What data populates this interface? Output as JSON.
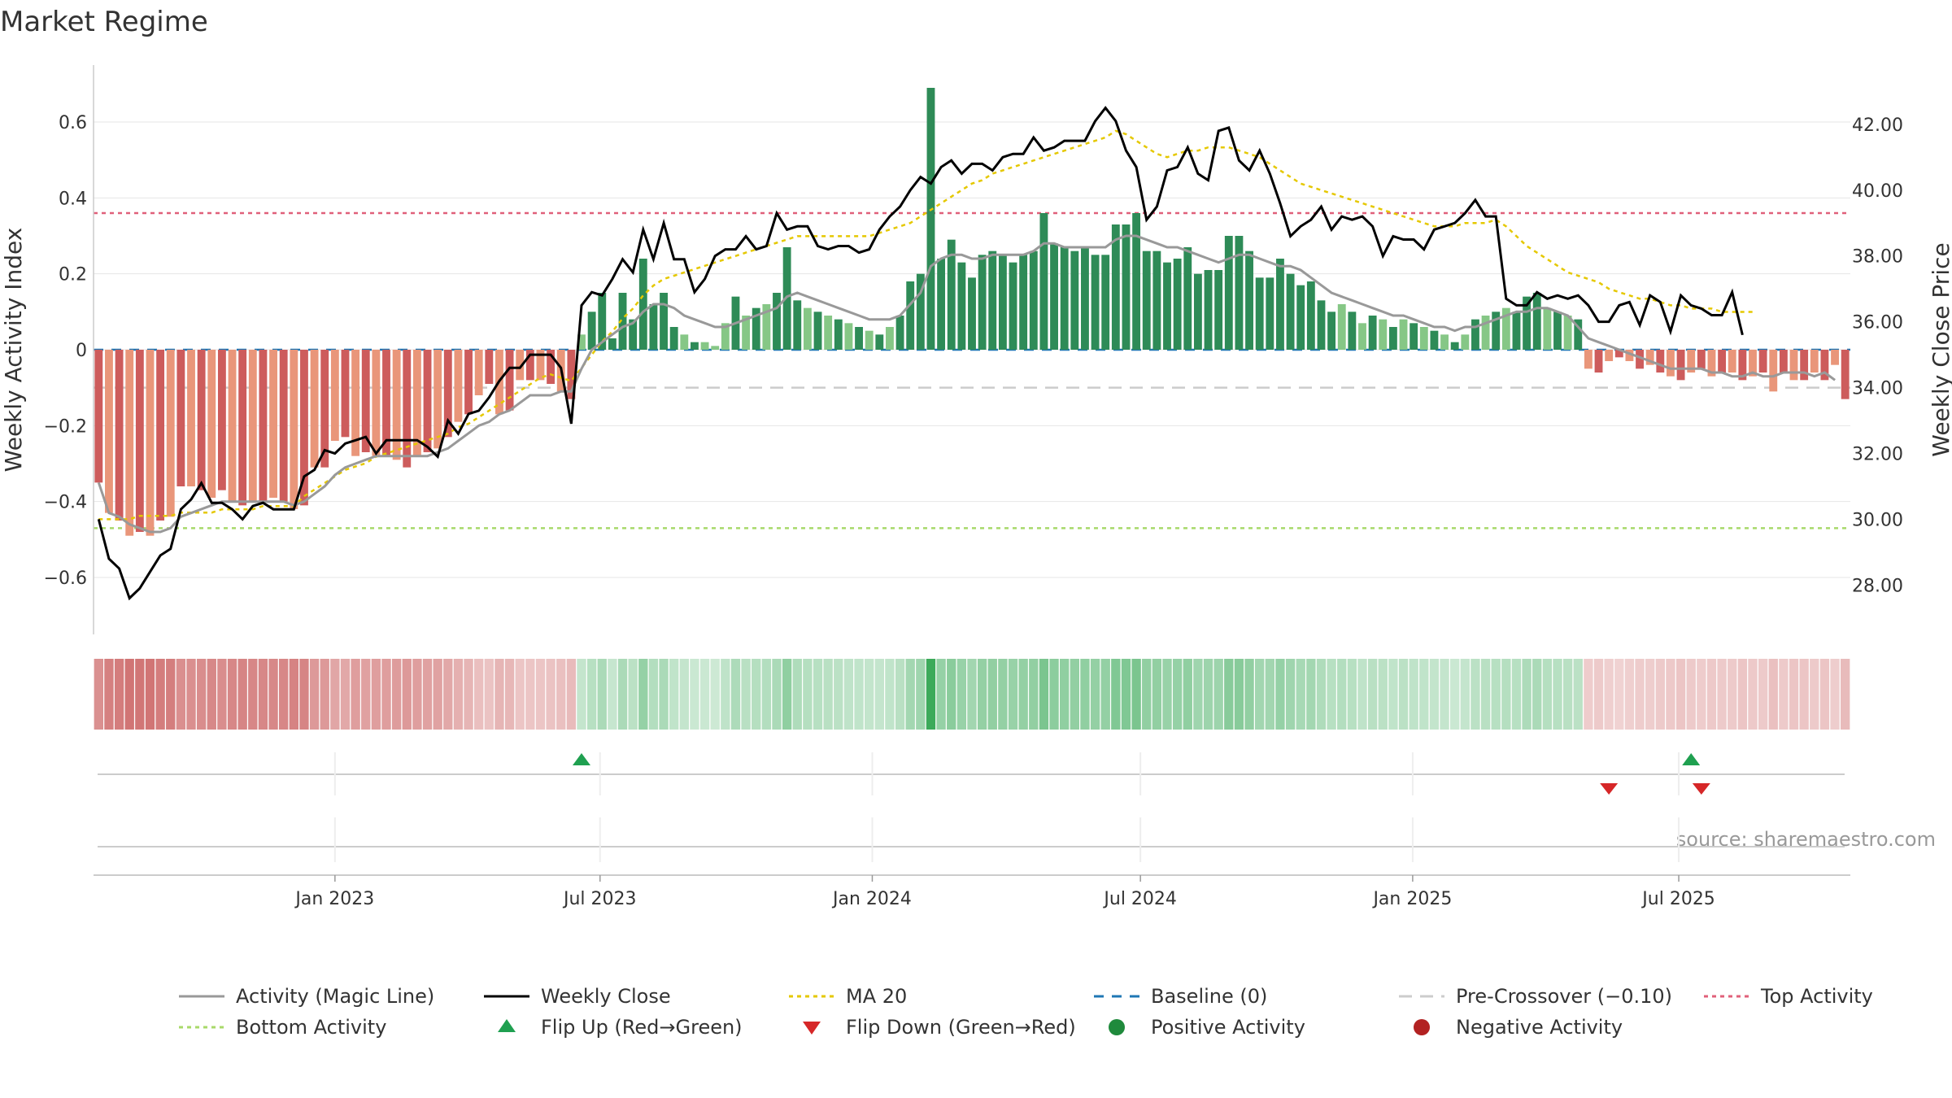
{
  "chart_data": {
    "type": "bar",
    "title": "Market Regime",
    "source": "source: sharemaestro.com",
    "left_axis": {
      "label": "Weekly Activity Index",
      "ylim": [
        -0.75,
        0.75
      ],
      "ticks": [
        0.6,
        0.4,
        0.2,
        0,
        -0.2,
        -0.4,
        -0.6
      ],
      "tick_labels": [
        "0.6",
        "0.4",
        "0.2",
        "0",
        "−0.2",
        "−0.4",
        "−0.6"
      ]
    },
    "right_axis": {
      "label": "Weekly Close Price",
      "ylim": [
        26.5,
        43.8
      ],
      "ticks": [
        42,
        40,
        38,
        36,
        34,
        32,
        30,
        28
      ],
      "tick_labels": [
        "42.00",
        "40.00",
        "38.00",
        "36.00",
        "34.00",
        "32.00",
        "30.00",
        "28.00"
      ]
    },
    "x_axis": {
      "tick_labels": [
        "Jan 2023",
        "Jul 2023",
        "Jan 2024",
        "Jul 2024",
        "Jan 2025",
        "Jul 2025"
      ],
      "tick_weeks": [
        23.5,
        49.3,
        75.8,
        101.9,
        128.4,
        154.3
      ]
    },
    "reference_lines": {
      "top_activity": 0.36,
      "bottom_activity": -0.47,
      "baseline": 0,
      "pre_crossover": -0.1
    },
    "activity": [
      -0.35,
      -0.43,
      -0.45,
      -0.49,
      -0.48,
      -0.49,
      -0.45,
      -0.44,
      -0.36,
      -0.36,
      -0.37,
      -0.39,
      -0.37,
      -0.4,
      -0.41,
      -0.4,
      -0.4,
      -0.39,
      -0.4,
      -0.42,
      -0.41,
      -0.31,
      -0.31,
      -0.24,
      -0.23,
      -0.28,
      -0.27,
      -0.28,
      -0.28,
      -0.29,
      -0.31,
      -0.28,
      -0.27,
      -0.26,
      -0.23,
      -0.19,
      -0.17,
      -0.12,
      -0.09,
      -0.17,
      -0.16,
      -0.08,
      -0.08,
      -0.08,
      -0.09,
      -0.11,
      -0.13,
      0.04,
      0.1,
      0.15,
      0.03,
      0.15,
      0.08,
      0.24,
      0.12,
      0.15,
      0.06,
      0.04,
      0.02,
      0.02,
      0.01,
      0.07,
      0.14,
      0.09,
      0.11,
      0.12,
      0.15,
      0.27,
      0.13,
      0.11,
      0.1,
      0.09,
      0.08,
      0.07,
      0.06,
      0.05,
      0.04,
      0.06,
      0.09,
      0.18,
      0.2,
      0.69,
      0.24,
      0.29,
      0.23,
      0.19,
      0.25,
      0.26,
      0.25,
      0.23,
      0.25,
      0.26,
      0.36,
      0.28,
      0.27,
      0.26,
      0.27,
      0.25,
      0.25,
      0.33,
      0.33,
      0.36,
      0.26,
      0.26,
      0.23,
      0.24,
      0.27,
      0.2,
      0.21,
      0.21,
      0.3,
      0.3,
      0.26,
      0.19,
      0.19,
      0.24,
      0.2,
      0.17,
      0.18,
      0.13,
      0.1,
      0.12,
      0.1,
      0.07,
      0.09,
      0.08,
      0.06,
      0.08,
      0.07,
      0.06,
      0.05,
      0.04,
      0.02,
      0.04,
      0.08,
      0.09,
      0.1,
      0.11,
      0.1,
      0.14,
      0.15,
      0.11,
      0.1,
      0.09,
      0.08,
      -0.05,
      -0.06,
      -0.03,
      -0.02,
      -0.03,
      -0.05,
      -0.04,
      -0.06,
      -0.07,
      -0.08,
      -0.06,
      -0.05,
      -0.07,
      -0.06,
      -0.06,
      -0.08,
      -0.07,
      -0.06,
      -0.11,
      -0.06,
      -0.08,
      -0.08,
      -0.06,
      -0.08,
      -0.04,
      -0.13
    ],
    "magic_line": [
      -0.35,
      -0.43,
      -0.44,
      -0.46,
      -0.47,
      -0.48,
      -0.48,
      -0.47,
      -0.44,
      -0.43,
      -0.42,
      -0.41,
      -0.4,
      -0.4,
      -0.4,
      -0.4,
      -0.4,
      -0.4,
      -0.4,
      -0.41,
      -0.4,
      -0.38,
      -0.36,
      -0.33,
      -0.31,
      -0.3,
      -0.29,
      -0.28,
      -0.28,
      -0.28,
      -0.28,
      -0.28,
      -0.28,
      -0.27,
      -0.26,
      -0.24,
      -0.22,
      -0.2,
      -0.19,
      -0.17,
      -0.16,
      -0.14,
      -0.12,
      -0.12,
      -0.12,
      -0.11,
      -0.11,
      -0.05,
      0,
      0.02,
      0.04,
      0.06,
      0.07,
      0.1,
      0.12,
      0.12,
      0.11,
      0.09,
      0.08,
      0.07,
      0.06,
      0.06,
      0.07,
      0.08,
      0.09,
      0.1,
      0.11,
      0.14,
      0.15,
      0.14,
      0.13,
      0.12,
      0.11,
      0.1,
      0.09,
      0.08,
      0.08,
      0.08,
      0.09,
      0.12,
      0.15,
      0.22,
      0.24,
      0.25,
      0.25,
      0.24,
      0.24,
      0.25,
      0.25,
      0.25,
      0.25,
      0.26,
      0.28,
      0.28,
      0.27,
      0.27,
      0.27,
      0.27,
      0.27,
      0.29,
      0.3,
      0.3,
      0.29,
      0.28,
      0.27,
      0.27,
      0.26,
      0.25,
      0.24,
      0.23,
      0.24,
      0.25,
      0.25,
      0.24,
      0.23,
      0.22,
      0.22,
      0.21,
      0.19,
      0.17,
      0.15,
      0.14,
      0.13,
      0.12,
      0.11,
      0.1,
      0.09,
      0.09,
      0.08,
      0.07,
      0.06,
      0.06,
      0.05,
      0.06,
      0.06,
      0.07,
      0.08,
      0.09,
      0.1,
      0.1,
      0.11,
      0.11,
      0.1,
      0.09,
      0.06,
      0.03,
      0.02,
      0.01,
      0,
      -0.01,
      -0.02,
      -0.03,
      -0.04,
      -0.05,
      -0.05,
      -0.05,
      -0.05,
      -0.06,
      -0.06,
      -0.07,
      -0.07,
      -0.06,
      -0.07,
      -0.07,
      -0.06,
      -0.06,
      -0.06,
      -0.07,
      -0.06,
      -0.08
    ],
    "weekly_close": [
      30.0,
      28.8,
      28.5,
      27.6,
      27.9,
      28.4,
      28.9,
      29.1,
      30.3,
      30.6,
      31.1,
      30.5,
      30.5,
      30.3,
      30.0,
      30.4,
      30.5,
      30.3,
      30.3,
      30.3,
      31.3,
      31.5,
      32.1,
      32.0,
      32.3,
      32.4,
      32.5,
      32.0,
      32.4,
      32.4,
      32.4,
      32.4,
      32.2,
      31.9,
      33.0,
      32.6,
      33.2,
      33.3,
      33.7,
      34.2,
      34.6,
      34.6,
      35.0,
      35.0,
      35.0,
      34.6,
      32.9,
      36.5,
      36.9,
      36.8,
      37.3,
      37.9,
      37.5,
      38.8,
      37.9,
      39.0,
      37.9,
      37.9,
      36.9,
      37.3,
      38.0,
      38.2,
      38.2,
      38.6,
      38.2,
      38.3,
      39.3,
      38.8,
      38.9,
      38.9,
      38.3,
      38.2,
      38.3,
      38.3,
      38.1,
      38.2,
      38.8,
      39.2,
      39.5,
      40.0,
      40.4,
      40.2,
      40.7,
      40.9,
      40.5,
      40.8,
      40.8,
      40.6,
      41.0,
      41.1,
      41.1,
      41.6,
      41.2,
      41.3,
      41.5,
      41.5,
      41.5,
      42.1,
      42.5,
      42.1,
      41.2,
      40.7,
      39.1,
      39.5,
      40.6,
      40.7,
      41.3,
      40.5,
      40.3,
      41.8,
      41.9,
      40.9,
      40.6,
      41.2,
      40.5,
      39.6,
      38.6,
      38.9,
      39.1,
      39.5,
      38.8,
      39.2,
      39.1,
      39.2,
      38.9,
      38.0,
      38.6,
      38.5,
      38.5,
      38.2,
      38.8,
      38.9,
      39.0,
      39.3,
      39.7,
      39.2,
      39.2,
      36.7,
      36.5,
      36.5,
      36.9,
      36.7,
      36.8,
      36.7,
      36.8,
      36.5,
      36.0,
      36.0,
      36.5,
      36.6,
      35.9,
      36.8,
      36.6,
      35.7,
      36.8,
      36.5,
      36.4,
      36.2,
      36.2,
      36.9,
      35.6
    ],
    "ma20": [
      30.0,
      30.0,
      30.0,
      30.0,
      30.1,
      30.1,
      30.1,
      30.1,
      30.2,
      30.2,
      30.2,
      30.2,
      30.3,
      30.3,
      30.3,
      30.3,
      30.4,
      30.4,
      30.4,
      30.4,
      30.7,
      30.9,
      31.1,
      31.3,
      31.5,
      31.6,
      31.7,
      31.9,
      32.0,
      32.1,
      32.2,
      32.3,
      32.4,
      32.5,
      32.6,
      32.8,
      32.9,
      33.1,
      33.3,
      33.5,
      33.7,
      33.9,
      34.1,
      34.3,
      34.4,
      34.3,
      34.2,
      34.6,
      35.0,
      35.4,
      35.7,
      36.1,
      36.4,
      36.8,
      37.1,
      37.3,
      37.4,
      37.5,
      37.6,
      37.7,
      37.8,
      37.9,
      38.0,
      38.1,
      38.2,
      38.3,
      38.4,
      38.5,
      38.6,
      38.6,
      38.6,
      38.6,
      38.6,
      38.6,
      38.6,
      38.6,
      38.7,
      38.8,
      38.9,
      39.0,
      39.2,
      39.4,
      39.6,
      39.8,
      40.0,
      40.2,
      40.3,
      40.5,
      40.6,
      40.7,
      40.8,
      40.9,
      41.0,
      41.1,
      41.2,
      41.3,
      41.4,
      41.5,
      41.6,
      41.8,
      41.7,
      41.5,
      41.3,
      41.1,
      41.0,
      41.1,
      41.2,
      41.2,
      41.3,
      41.3,
      41.3,
      41.2,
      41.1,
      41.0,
      40.8,
      40.6,
      40.4,
      40.2,
      40.1,
      40.0,
      39.9,
      39.8,
      39.7,
      39.6,
      39.5,
      39.4,
      39.3,
      39.2,
      39.1,
      39.0,
      38.9,
      38.9,
      38.9,
      39.0,
      39.0,
      39.0,
      39.1,
      38.9,
      38.6,
      38.3,
      38.1,
      37.9,
      37.7,
      37.5,
      37.4,
      37.3,
      37.2,
      37.0,
      36.9,
      36.8,
      36.7,
      36.7,
      36.6,
      36.5,
      36.5,
      36.4,
      36.4,
      36.4,
      36.3,
      36.3,
      36.3,
      36.3
    ],
    "flip_up_weeks": [
      47,
      155
    ],
    "flip_down_weeks": [
      147,
      156
    ],
    "legend": [
      {
        "key": "magic",
        "label": "Activity (Magic Line)",
        "color": "#999999"
      },
      {
        "key": "close",
        "label": "Weekly Close",
        "color": "#000000"
      },
      {
        "key": "ma20",
        "label": "MA 20",
        "color": "#e5c800"
      },
      {
        "key": "baseline",
        "label": "Baseline (0)",
        "color": "#1f77b4"
      },
      {
        "key": "pre",
        "label": "Pre-Crossover (−0.10)",
        "color": "#cccccc"
      },
      {
        "key": "top",
        "label": "Top Activity",
        "color": "#e0607a"
      },
      {
        "key": "bottom",
        "label": "Bottom Activity",
        "color": "#a8d96a"
      },
      {
        "key": "flipup",
        "label": "Flip Up (Red→Green)",
        "color": "#1fa050"
      },
      {
        "key": "flipdown",
        "label": "Flip Down (Green→Red)",
        "color": "#d62728"
      },
      {
        "key": "pos",
        "label": "Positive Activity",
        "color": "#1f8a3c"
      },
      {
        "key": "neg",
        "label": "Negative Activity",
        "color": "#b22222"
      }
    ],
    "colors": {
      "pos_dark": "#2e8b57",
      "pos_light": "#86c786",
      "neg_dark": "#cd5c5c",
      "neg_light": "#e9967a",
      "grid": "#e6e6e6"
    }
  }
}
